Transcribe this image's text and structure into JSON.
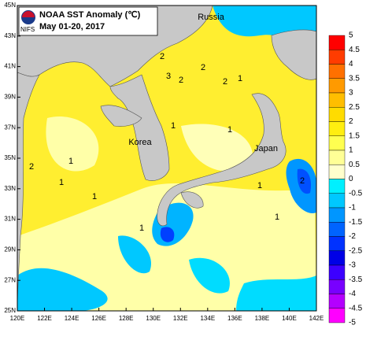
{
  "header": {
    "title": "NOAA SST Anomaly (℃)",
    "date": "May 01-20, 2017",
    "logo": "NIFS"
  },
  "map": {
    "place_labels": [
      "Russia",
      "Korea",
      "Japan"
    ],
    "lat_labels": [
      "45N",
      "43N",
      "41N",
      "39N",
      "37N",
      "35N",
      "33N",
      "31N",
      "29N",
      "27N",
      "25N"
    ],
    "lon_labels": [
      "120E",
      "122E",
      "124E",
      "126E",
      "128E",
      "130E",
      "132E",
      "134E",
      "136E",
      "138E",
      "140E",
      "142E"
    ],
    "contour_labels": [
      2,
      3,
      2,
      2,
      1,
      1,
      2,
      1,
      1,
      1,
      2,
      1,
      1,
      2,
      1,
      1
    ]
  },
  "colorbar": {
    "labels": [
      5,
      4.5,
      4,
      3.5,
      3,
      2.5,
      2,
      1.5,
      1,
      0.5,
      0,
      -0.5,
      -1,
      -1.5,
      -2,
      -2.5,
      -3,
      -3.5,
      -4,
      -4.5,
      -5
    ],
    "colors": [
      "#ff0000",
      "#ff3c00",
      "#ff7000",
      "#ff9a00",
      "#ffbe00",
      "#ffdc00",
      "#ffee10",
      "#ffff50",
      "#ffff96",
      "#ffffcc",
      "#00f0ff",
      "#00c8ff",
      "#0096ff",
      "#0064ff",
      "#0032ff",
      "#0000e6",
      "#3c00ff",
      "#7800ff",
      "#b400ff",
      "#ff00ff"
    ]
  }
}
